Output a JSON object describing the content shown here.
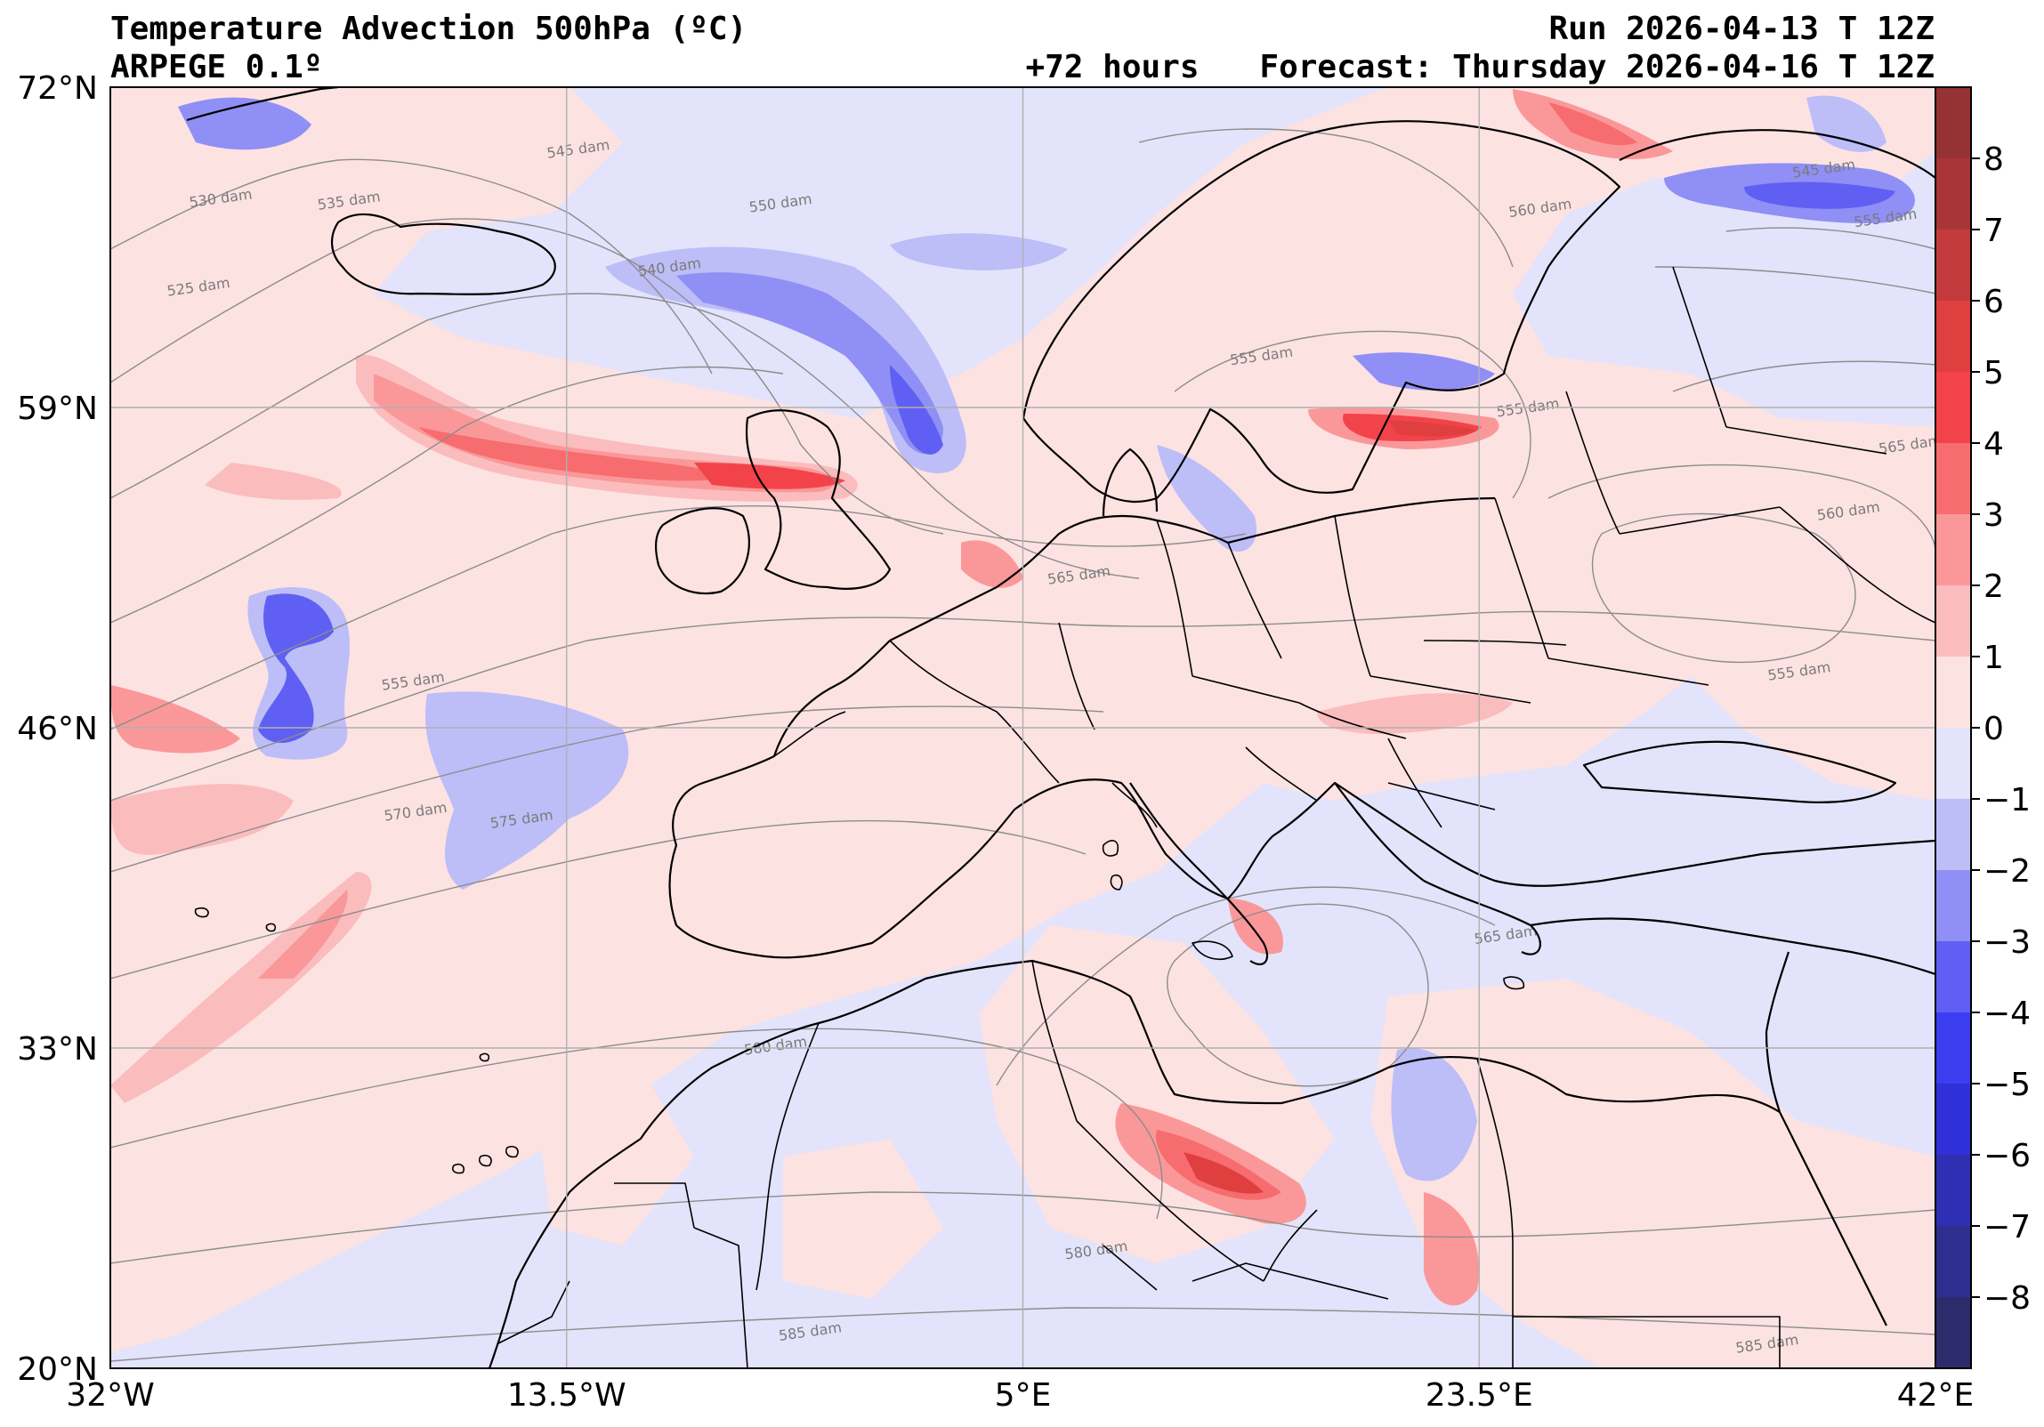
{
  "header": {
    "title": "Temperature Advection  500hPa (ºC)",
    "model": "ARPEGE 0.1º",
    "lead": "+72 hours",
    "run": "Run 2026-04-13 T 12Z",
    "forecast": "Forecast: Thursday 2026-04-16 T 12Z"
  },
  "map": {
    "lon_range": [
      -32,
      42
    ],
    "lat_range": [
      20,
      72
    ],
    "lat_ticks": [
      {
        "value": 72,
        "label": "72°N"
      },
      {
        "value": 59,
        "label": "59°N"
      },
      {
        "value": 46,
        "label": "46°N"
      },
      {
        "value": 33,
        "label": "33°N"
      },
      {
        "value": 20,
        "label": "20°N"
      }
    ],
    "lon_ticks": [
      {
        "value": -32,
        "label": "32°W"
      },
      {
        "value": -13.5,
        "label": "13.5°W"
      },
      {
        "value": 5,
        "label": "5°E"
      },
      {
        "value": 23.5,
        "label": "23.5°E"
      },
      {
        "value": 42,
        "label": "42°E"
      }
    ],
    "contour_labels": [
      {
        "text": "545 dam",
        "lon": -13.0,
        "lat": 69.3
      },
      {
        "text": "535 dam",
        "lon": -22.3,
        "lat": 67.2
      },
      {
        "text": "530 dam",
        "lon": -27.5,
        "lat": 67.3
      },
      {
        "text": "550 dam",
        "lon": -4.8,
        "lat": 67.1
      },
      {
        "text": "540 dam",
        "lon": -9.3,
        "lat": 64.5
      },
      {
        "text": "525 dam",
        "lon": -28.4,
        "lat": 63.7
      },
      {
        "text": "555 dam",
        "lon": 14.7,
        "lat": 60.9
      },
      {
        "text": "555 dam",
        "lon": 25.5,
        "lat": 58.8
      },
      {
        "text": "560 dam",
        "lon": 26.0,
        "lat": 66.9
      },
      {
        "text": "545 dam",
        "lon": 37.5,
        "lat": 68.5
      },
      {
        "text": "555 dam",
        "lon": 40.0,
        "lat": 66.5
      },
      {
        "text": "565 dam",
        "lon": 41.0,
        "lat": 57.3
      },
      {
        "text": "560 dam",
        "lon": 38.5,
        "lat": 54.6
      },
      {
        "text": "565 dam",
        "lon": 7.3,
        "lat": 52.0
      },
      {
        "text": "555 dam",
        "lon": 36.5,
        "lat": 48.1
      },
      {
        "text": "555 dam",
        "lon": -19.7,
        "lat": 47.7
      },
      {
        "text": "570 dam",
        "lon": -19.6,
        "lat": 42.4
      },
      {
        "text": "575 dam",
        "lon": -15.3,
        "lat": 42.1
      },
      {
        "text": "565 dam",
        "lon": 24.6,
        "lat": 37.4
      },
      {
        "text": "580 dam",
        "lon": -5.0,
        "lat": 32.9
      },
      {
        "text": "580 dam",
        "lon": 8.0,
        "lat": 24.6
      },
      {
        "text": "585 dam",
        "lon": -3.6,
        "lat": 21.3
      },
      {
        "text": "585 dam",
        "lon": 35.2,
        "lat": 20.8
      }
    ]
  },
  "colorbar": {
    "ticks": [
      "8",
      "7",
      "6",
      "5",
      "4",
      "3",
      "2",
      "1",
      "0",
      "−1",
      "−2",
      "−3",
      "−4",
      "−5",
      "−6",
      "−7",
      "−8"
    ],
    "levels_top_to_bottom": [
      "#953233",
      "#a83537",
      "#c23a3c",
      "#e03f40",
      "#f3434a",
      "#f76c6f",
      "#fa9899",
      "#fbbcbd",
      "#fde2e2",
      "#e3e3fb",
      "#bdbdf8",
      "#8f8ff5",
      "#5f5ff3",
      "#3c3cf0",
      "#3030d8",
      "#2f2fb3",
      "#2e2e8e",
      "#2c2c6d"
    ]
  },
  "palette": {
    "warm_weak": "#fde2e2",
    "warm_1": "#fbbcbd",
    "warm_2": "#fa9899",
    "warm_3": "#f76c6f",
    "warm_4": "#f3434a",
    "warm_5": "#e03f40",
    "cold_weak": "#e3e3fb",
    "cold_1": "#bdbdf8",
    "cold_2": "#8f8ff5",
    "cold_3": "#5f5ff3",
    "cold_4": "#3c3cf0",
    "cold_5": "#3030d8",
    "contour": "#8c8c8c",
    "coast": "#000000",
    "grid": "#b0b0b0"
  }
}
